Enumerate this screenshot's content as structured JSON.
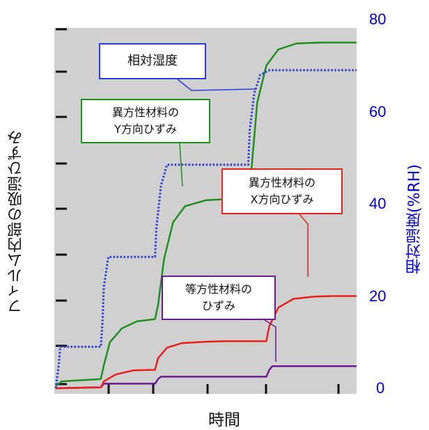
{
  "chart_data": {
    "type": "line",
    "xlabel": "時間",
    "ylabel_left": "フィルム内部の吸湿ひずみ",
    "ylabel_right": "相対湿度(%RH)",
    "y_right_lim": [
      0,
      80
    ],
    "y_right_ticks": [
      "0",
      "20",
      "40",
      "60",
      "80"
    ],
    "grid": false,
    "colors": {
      "rh": "#2b3bd8",
      "y_strain": "#1f8f1f",
      "x_strain": "#e8201e",
      "iso_strain": "#6a1a8e",
      "plot_bg": "#d0d0d0"
    },
    "series": [
      {
        "name": "相対湿度",
        "style": "dotted",
        "x": [
          0,
          0.01,
          0.015,
          0.15,
          0.155,
          0.16,
          0.175,
          0.33,
          0.335,
          0.35,
          0.37,
          0.64,
          0.645,
          0.66,
          0.68,
          0.71,
          1.0
        ],
        "y": [
          0,
          5,
          9,
          9,
          14,
          22,
          28.5,
          28.5,
          35,
          44,
          48.5,
          48.5,
          56,
          64,
          68,
          69,
          69
        ]
      },
      {
        "name": "異方性材料のY方向ひずみ",
        "x": [
          0,
          0.02,
          0.15,
          0.16,
          0.18,
          0.22,
          0.27,
          0.33,
          0.34,
          0.36,
          0.39,
          0.43,
          0.5,
          0.56,
          0.64,
          0.65,
          0.67,
          0.7,
          0.74,
          0.8,
          0.88,
          1.0
        ],
        "y": [
          0.5,
          1.5,
          2,
          5,
          10,
          13,
          14.5,
          15,
          18,
          28,
          36,
          39.5,
          40.8,
          41,
          41,
          47,
          62,
          70,
          73.5,
          74.8,
          75,
          75
        ]
      },
      {
        "name": "異方性材料のX方向ひずみ",
        "x": [
          0,
          0.15,
          0.16,
          0.2,
          0.26,
          0.33,
          0.34,
          0.37,
          0.42,
          0.5,
          0.56,
          0.7,
          0.71,
          0.74,
          0.79,
          0.86,
          0.92,
          1.0
        ],
        "y": [
          0,
          0.2,
          1.5,
          3,
          3.9,
          4,
          6.5,
          8.8,
          9.8,
          10.1,
          10.2,
          10.2,
          13.5,
          17.5,
          19.4,
          19.9,
          20,
          20
        ]
      },
      {
        "name": "等方性材料のひずみ",
        "x": [
          0,
          0.15,
          0.16,
          0.33,
          0.34,
          0.35,
          0.7,
          0.71,
          0.72,
          1.0
        ],
        "y": [
          0,
          0.2,
          1,
          1,
          2,
          2.5,
          2.5,
          4,
          4.8,
          4.8
        ]
      }
    ],
    "callouts": [
      {
        "line1": "相対湿度",
        "line2": ""
      },
      {
        "line1": "異方性材料の",
        "line2": "Y方向ひずみ"
      },
      {
        "line1": "異方性材料の",
        "line2": "X方向ひずみ"
      },
      {
        "line1": "等方性材料の",
        "line2": "ひずみ"
      }
    ]
  }
}
